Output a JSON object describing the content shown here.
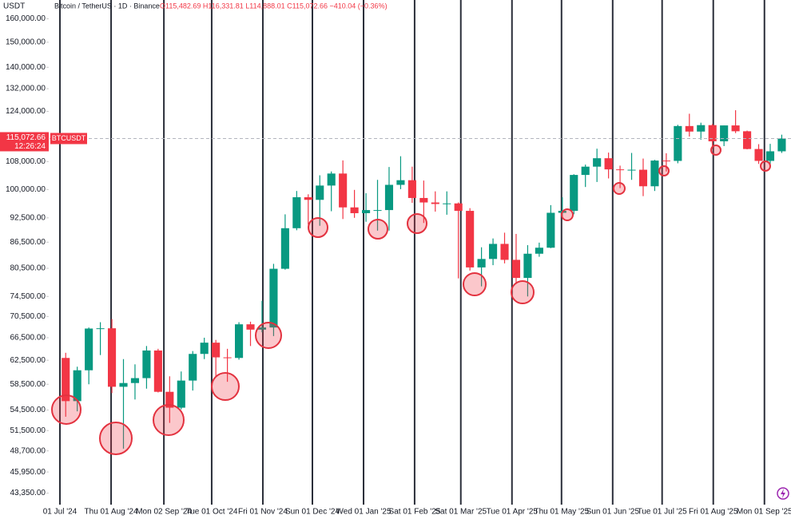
{
  "chart_data": {
    "type": "candlestick",
    "y_axis_label": "USDT",
    "title": "Bitcoin / TetherUS · 1D · Binance",
    "ohlc_text": "O115,482.69 H116,331.81 L114,888.01 C115,072.66 −410.04 (−0.36%)",
    "symbol": "BTCUSDT",
    "countdown": "12:26:24",
    "last_price": {
      "value": 115072.66,
      "label": "115,072.66"
    },
    "up_color": "#089981",
    "down_color": "#f23645",
    "log_scale": true,
    "grid": true,
    "ylim": [
      42000,
      168500
    ],
    "yticks": [
      {
        "value": 160000,
        "label": "160,000.00"
      },
      {
        "value": 150000,
        "label": "150,000.00"
      },
      {
        "value": 140000,
        "label": "140,000.00"
      },
      {
        "value": 132000,
        "label": "132,000.00"
      },
      {
        "value": 124000,
        "label": "124,000.00"
      },
      {
        "value": 108000,
        "label": "108,000.00"
      },
      {
        "value": 100000,
        "label": "100,000.00"
      },
      {
        "value": 92500,
        "label": "92,500.00"
      },
      {
        "value": 86500,
        "label": "86,500.00"
      },
      {
        "value": 80500,
        "label": "80,500.00"
      },
      {
        "value": 74500,
        "label": "74,500.00"
      },
      {
        "value": 70500,
        "label": "70,500.00"
      },
      {
        "value": 66500,
        "label": "66,500.00"
      },
      {
        "value": 62500,
        "label": "62,500.00"
      },
      {
        "value": 58500,
        "label": "58,500.00"
      },
      {
        "value": 54500,
        "label": "54,500.00"
      },
      {
        "value": 51500,
        "label": "51,500.00"
      },
      {
        "value": 48700,
        "label": "48,700.00"
      },
      {
        "value": 45950,
        "label": "45,950.00"
      },
      {
        "value": 43350,
        "label": "43,350.00"
      }
    ],
    "xlim": [
      -0.9,
      63.3
    ],
    "xticks": [
      {
        "value": 0,
        "label": "01 Jul '24"
      },
      {
        "value": 4.43,
        "label": "Thu 01 Aug '24"
      },
      {
        "value": 9,
        "label": "Mon 02 Sep '24"
      },
      {
        "value": 13.14,
        "label": "Tue 01 Oct '24"
      },
      {
        "value": 17.57,
        "label": "Fri 01 Nov '24"
      },
      {
        "value": 21.86,
        "label": "Sun 01 Dec '24"
      },
      {
        "value": 26.29,
        "label": "Wed 01 Jan '25"
      },
      {
        "value": 30.71,
        "label": "Sat 01 Feb '25"
      },
      {
        "value": 34.71,
        "label": "Sat 01 Mar '25"
      },
      {
        "value": 39.14,
        "label": "Tue 01 Apr '25"
      },
      {
        "value": 43.43,
        "label": "Thu 01 May '25"
      },
      {
        "value": 47.86,
        "label": "Sun 01 Jun '25"
      },
      {
        "value": 52.14,
        "label": "Tue 01 Jul '25"
      },
      {
        "value": 56.57,
        "label": "Fri 01 Aug '25"
      },
      {
        "value": 61,
        "label": "Mon 01 Sep '25"
      }
    ],
    "open": [
      62900,
      55850,
      60800,
      68200,
      68250,
      58100,
      58700,
      59500,
      64200,
      57300,
      54850,
      59100,
      63600,
      65600,
      63000,
      62900,
      69000,
      68000,
      68400,
      80400,
      89900,
      97900,
      97200,
      101100,
      104500,
      95200,
      93700,
      94500,
      94500,
      101300,
      102600,
      97700,
      96500,
      96100,
      96250,
      94300,
      80700,
      82600,
      86100,
      82400,
      78400,
      83800,
      85200,
      93800,
      94300,
      104100,
      106500,
      109000,
      105700,
      105600,
      105600,
      100900,
      108300,
      108200,
      119100,
      117300,
      119400,
      114200,
      119300,
      117400,
      111800,
      108200,
      111100
    ],
    "high": [
      63800,
      61400,
      68400,
      69400,
      70000,
      62700,
      61800,
      65000,
      64500,
      59800,
      60600,
      64100,
      66500,
      66100,
      64500,
      69400,
      69500,
      73600,
      81500,
      93400,
      99600,
      98700,
      104000,
      105100,
      108350,
      99900,
      99000,
      102700,
      106400,
      109600,
      106500,
      102500,
      99500,
      99500,
      96500,
      95000,
      85300,
      87400,
      88800,
      88500,
      85800,
      86400,
      95800,
      97900,
      104300,
      107100,
      111900,
      110700,
      106800,
      110600,
      108900,
      108500,
      110500,
      119500,
      123200,
      120200,
      119800,
      119300,
      124400,
      117600,
      113300,
      113400,
      116300
    ],
    "low": [
      53500,
      54300,
      58500,
      63400,
      57100,
      49000,
      56100,
      57800,
      57200,
      52600,
      54600,
      57500,
      62700,
      59800,
      58900,
      62600,
      65000,
      67500,
      66800,
      80200,
      89400,
      90800,
      90500,
      94200,
      92200,
      92500,
      91500,
      89300,
      89300,
      100100,
      96400,
      91200,
      94100,
      93300,
      78300,
      80000,
      76600,
      81200,
      81600,
      77100,
      74500,
      83100,
      85100,
      92800,
      93400,
      100700,
      102100,
      103100,
      100400,
      102700,
      98200,
      99600,
      105100,
      107500,
      115700,
      114700,
      112000,
      112700,
      116800,
      111700,
      107300,
      107300,
      110600
    ],
    "close": [
      55850,
      60800,
      68200,
      68250,
      58100,
      58700,
      59500,
      64200,
      57300,
      54850,
      59100,
      63600,
      65600,
      63000,
      62900,
      69000,
      68000,
      68400,
      80400,
      89900,
      97900,
      97200,
      101100,
      104500,
      95200,
      93700,
      94500,
      94500,
      101300,
      102600,
      97700,
      96500,
      96100,
      96250,
      94300,
      80700,
      82600,
      86100,
      82400,
      78400,
      83800,
      85200,
      93800,
      94300,
      104100,
      106500,
      109000,
      105700,
      105600,
      105600,
      100900,
      108300,
      108200,
      119100,
      117300,
      119400,
      114200,
      119300,
      117400,
      111800,
      108200,
      111100,
      115100
    ]
  }
}
